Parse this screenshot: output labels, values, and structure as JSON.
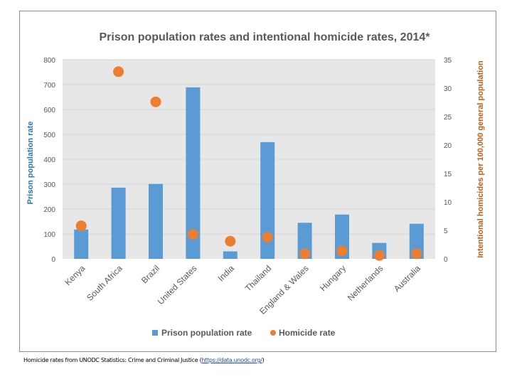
{
  "chart_data": {
    "type": "bar+scatter",
    "title": "Prison population rates and intentional homicide rates, 2014*",
    "categories": [
      "Kenya",
      "South Africa",
      "Brazil",
      "United States",
      "India",
      "Thailand",
      "England & Wales",
      "Hungary",
      "Netherlands",
      "Australia"
    ],
    "series": [
      {
        "name": "Prison population rate",
        "type": "bar",
        "axis": "left",
        "color": "#5b9bd5",
        "values": [
          118,
          286,
          301,
          689,
          30,
          469,
          145,
          178,
          64,
          141
        ]
      },
      {
        "name": "Homicide rate",
        "type": "scatter",
        "axis": "right",
        "color": "#ed7d31",
        "values": [
          5.8,
          32.9,
          27.6,
          4.3,
          3.1,
          3.8,
          0.9,
          1.4,
          0.6,
          0.9
        ]
      }
    ],
    "ylabel": "Prison population rate",
    "y2label": "Intentional homicides per 100,000 general population",
    "ylim": [
      0,
      800
    ],
    "y2lim": [
      0,
      35
    ],
    "yticks": [
      0,
      100,
      200,
      300,
      400,
      500,
      600,
      700,
      800
    ],
    "y2ticks": [
      0,
      5,
      10,
      15,
      20,
      25,
      30,
      35
    ],
    "grid": true,
    "legend": "bottom",
    "plot_background": "#e7e7e7",
    "ylabel_color": "#2e75b6",
    "y2label_color": "#c55a11"
  },
  "source": {
    "text": "Homicide rates from UNODC Statistics: Crime and Criminal Justice (",
    "link": "https://data.unodc.org/",
    "close": ")"
  }
}
